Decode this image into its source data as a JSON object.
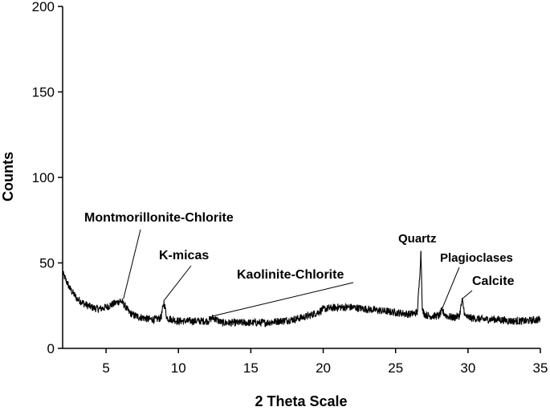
{
  "chart_data": {
    "type": "line",
    "title": "",
    "xlabel": "2 Theta Scale",
    "ylabel": "Counts",
    "xlim": [
      2,
      35
    ],
    "ylim": [
      0,
      200
    ],
    "xticks": [
      5,
      10,
      15,
      20,
      25,
      30,
      35
    ],
    "yticks": [
      0,
      50,
      100,
      150,
      200
    ],
    "grid": false,
    "legend": "none",
    "line_color": "#000000",
    "series": [
      {
        "x": [
          2,
          2.5,
          3,
          3.5,
          4,
          4.5,
          5,
          5.5,
          5.8,
          6.0,
          6.3,
          6.6,
          7,
          7.5,
          8,
          8.5,
          8.8,
          9.0,
          9.2,
          9.5,
          10,
          11,
          12,
          12.4,
          12.8,
          13,
          14,
          15,
          16,
          17,
          18,
          19,
          19.6,
          20,
          21,
          22,
          23,
          24,
          25,
          26,
          26.5,
          26.65,
          26.75,
          26.85,
          27,
          27.3,
          28,
          28.2,
          28.5,
          29,
          29.4,
          29.6,
          29.8,
          30,
          31,
          32,
          33,
          34,
          35
        ],
        "y": [
          44,
          35,
          29,
          26,
          24,
          23,
          24,
          26,
          27,
          28,
          25,
          21,
          19,
          18,
          17,
          17,
          18,
          27,
          18,
          17,
          16,
          16,
          16,
          18,
          16,
          15,
          15,
          15,
          15,
          16,
          17,
          19,
          21,
          23,
          24,
          24,
          23,
          22,
          21,
          20,
          21,
          40,
          57,
          22,
          20,
          19,
          19,
          22,
          19,
          18,
          19,
          28,
          19,
          18,
          17,
          17,
          16,
          16,
          17
        ]
      }
    ],
    "annotations": [
      {
        "text": "Montmorillonite-Chlorite",
        "x": 6.2,
        "y": 28
      },
      {
        "text": "K-micas",
        "x": 9.0,
        "y": 27
      },
      {
        "text": "Kaolinite-Chlorite",
        "x": 12.4,
        "y": 18
      },
      {
        "text": "Quartz",
        "x": 26.75,
        "y": 57
      },
      {
        "text": "Plagioclases",
        "x": 28.2,
        "y": 22
      },
      {
        "text": "Calcite",
        "x": 29.6,
        "y": 28
      }
    ]
  }
}
